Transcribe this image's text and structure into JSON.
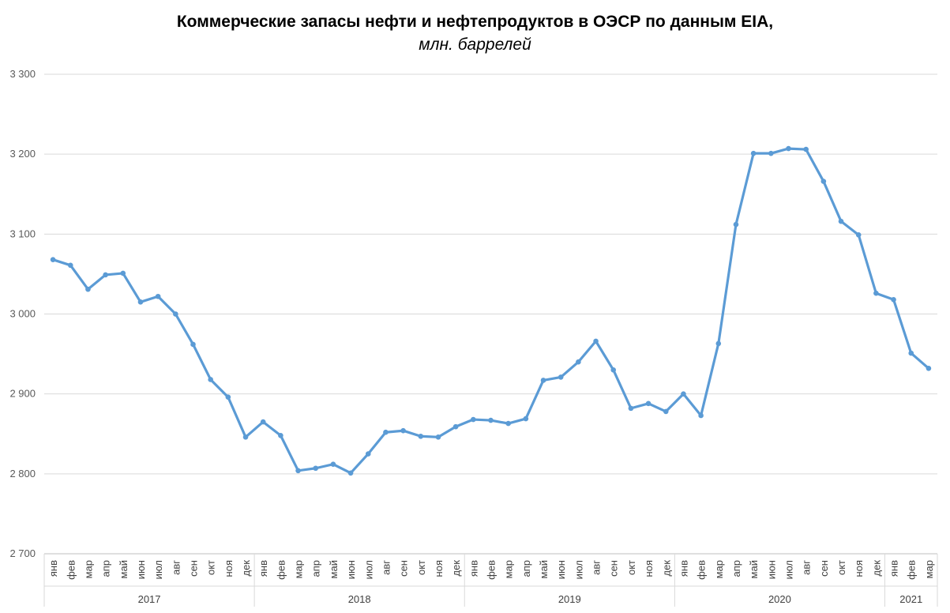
{
  "chart_data": {
    "type": "line",
    "title": "Коммерческие запасы нефти и нефтепродуктов в ОЭСР по данным EIA,",
    "subtitle": "млн. баррелей",
    "ylim": [
      2700,
      3300
    ],
    "yticks": [
      "3 300",
      "3 200",
      "3 100",
      "3 000",
      "2 900",
      "2 800",
      "2 700"
    ],
    "ytick_values": [
      3300,
      3200,
      3100,
      3000,
      2900,
      2800,
      2700
    ],
    "grid": true,
    "line_color": "#5B9BD5",
    "years": [
      {
        "label": "2017",
        "months": 12
      },
      {
        "label": "2018",
        "months": 12
      },
      {
        "label": "2019",
        "months": 12
      },
      {
        "label": "2020",
        "months": 12
      },
      {
        "label": "2021",
        "months": 3
      }
    ],
    "categories": [
      "янв",
      "фев",
      "мар",
      "апр",
      "май",
      "июн",
      "июл",
      "авг",
      "сен",
      "окт",
      "ноя",
      "дек",
      "янв",
      "фев",
      "мар",
      "апр",
      "май",
      "июн",
      "июл",
      "авг",
      "сен",
      "окт",
      "ноя",
      "дек",
      "янв",
      "фев",
      "мар",
      "апр",
      "май",
      "июн",
      "июл",
      "авг",
      "сен",
      "окт",
      "ноя",
      "дек",
      "янв",
      "фев",
      "мар",
      "апр",
      "май",
      "июн",
      "июл",
      "авг",
      "сен",
      "окт",
      "ноя",
      "дек",
      "янв",
      "фев",
      "мар"
    ],
    "values": [
      3068,
      3061,
      3031,
      3049,
      3051,
      3015,
      3022,
      3000,
      2962,
      2918,
      2896,
      2846,
      2865,
      2848,
      2804,
      2807,
      2812,
      2801,
      2825,
      2852,
      2854,
      2847,
      2846,
      2859,
      2868,
      2867,
      2863,
      2869,
      2917,
      2921,
      2940,
      2966,
      2930,
      2882,
      2888,
      2878,
      2900,
      2873,
      2963,
      3112,
      3201,
      3201,
      3207,
      3206,
      3166,
      3116,
      3099,
      3026,
      3018,
      2951,
      2932
    ]
  }
}
